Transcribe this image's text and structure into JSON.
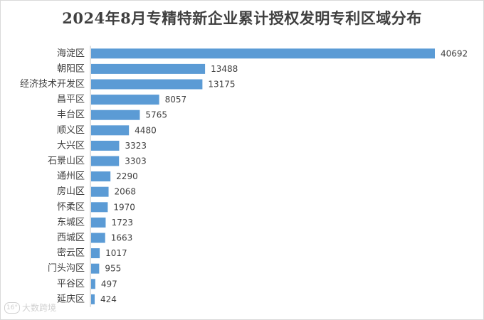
{
  "chart_data": {
    "type": "bar",
    "orientation": "horizontal",
    "title": "2024年8月专精特新企业累计授权发明专利区域分布",
    "xlabel": "",
    "ylabel": "",
    "categories": [
      "海淀区",
      "朝阳区",
      "经济技术开发区",
      "昌平区",
      "丰台区",
      "顺义区",
      "大兴区",
      "石景山区",
      "通州区",
      "房山区",
      "怀柔区",
      "东城区",
      "西城区",
      "密云区",
      "门头沟区",
      "平谷区",
      "延庆区"
    ],
    "values": [
      40692,
      13488,
      13175,
      8057,
      5765,
      4480,
      3323,
      3303,
      2290,
      2068,
      1970,
      1723,
      1663,
      1017,
      955,
      497,
      424
    ],
    "xlim": [
      0,
      40692
    ],
    "grid": false,
    "legend": "none",
    "data_labels": true,
    "bar_color": "#5b9bd5"
  },
  "watermark": {
    "logo_text": "16°",
    "text": "大数跨境"
  }
}
